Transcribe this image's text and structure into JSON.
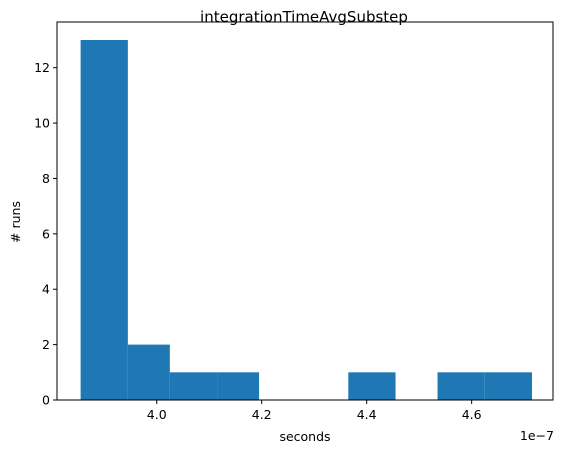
{
  "chart_data": {
    "type": "bar",
    "title": "integrationTimeAvgSubstep",
    "xlabel": "seconds",
    "ylabel": "# runs",
    "x_offset_text": "1e−7",
    "x_scale": 1e-07,
    "bins": [
      {
        "x0": 3.855e-07,
        "x1": 3.945e-07,
        "count": 13
      },
      {
        "x0": 3.945e-07,
        "x1": 4.025e-07,
        "count": 2
      },
      {
        "x0": 4.025e-07,
        "x1": 4.115e-07,
        "count": 1
      },
      {
        "x0": 4.115e-07,
        "x1": 4.195e-07,
        "count": 1
      },
      {
        "x0": 4.195e-07,
        "x1": 4.285e-07,
        "count": 0
      },
      {
        "x0": 4.285e-07,
        "x1": 4.365e-07,
        "count": 0
      },
      {
        "x0": 4.365e-07,
        "x1": 4.455e-07,
        "count": 1
      },
      {
        "x0": 4.455e-07,
        "x1": 4.535e-07,
        "count": 0
      },
      {
        "x0": 4.535e-07,
        "x1": 4.625e-07,
        "count": 1
      },
      {
        "x0": 4.625e-07,
        "x1": 4.715e-07,
        "count": 1
      }
    ],
    "xlim": [
      3.81e-07,
      4.755e-07
    ],
    "ylim": [
      0,
      13.65
    ],
    "x_ticks": [
      {
        "value": 4e-07,
        "label": "4.0"
      },
      {
        "value": 4.2e-07,
        "label": "4.2"
      },
      {
        "value": 4.4e-07,
        "label": "4.4"
      },
      {
        "value": 4.6e-07,
        "label": "4.6"
      }
    ],
    "y_ticks": [
      {
        "value": 0,
        "label": "0"
      },
      {
        "value": 2,
        "label": "2"
      },
      {
        "value": 4,
        "label": "4"
      },
      {
        "value": 6,
        "label": "6"
      },
      {
        "value": 8,
        "label": "8"
      },
      {
        "value": 10,
        "label": "10"
      },
      {
        "value": 12,
        "label": "12"
      }
    ],
    "bar_color": "#1f77b4",
    "grid": false,
    "legend": "none"
  }
}
